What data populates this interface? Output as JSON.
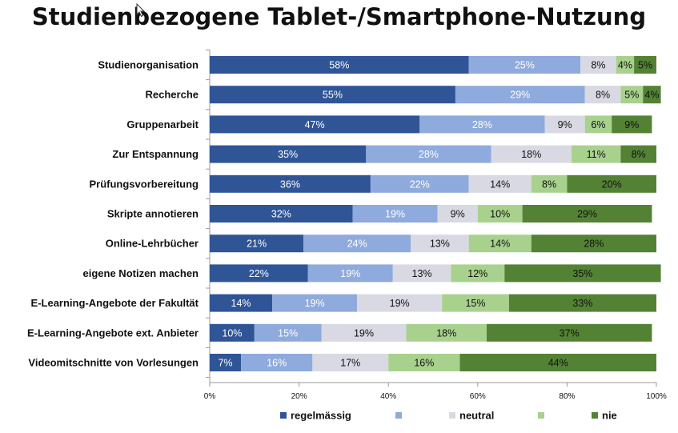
{
  "chart_data": {
    "type": "bar",
    "orientation": "horizontal",
    "stacked": true,
    "title": "Studienbezogene Tablet-/Smartphone-Nutzung",
    "categories": [
      "Studienorganisation",
      "Recherche",
      "Gruppenarbeit",
      "Zur Entspannung",
      "Prüfungsvorbereitung",
      "Skripte annotieren",
      "Online-Lehrbücher",
      "eigene Notizen machen",
      "E-Learning-Angebote der Fakultät",
      "E-Learning-Angebote ext. Anbieter",
      "Videomitschnitte von Vorlesungen"
    ],
    "series": [
      {
        "name": "regelmässig",
        "color": "#2f5597",
        "label_color": "#ffffff",
        "values": [
          58,
          55,
          47,
          35,
          36,
          32,
          21,
          22,
          14,
          10,
          7
        ]
      },
      {
        "name": "",
        "color": "#8faadc",
        "label_color": "#ffffff",
        "values": [
          25,
          29,
          28,
          28,
          22,
          19,
          24,
          19,
          19,
          15,
          16
        ]
      },
      {
        "name": "neutral",
        "color": "#d9d9e3",
        "label_color": "#111111",
        "values": [
          8,
          8,
          9,
          18,
          14,
          9,
          13,
          13,
          19,
          19,
          17
        ]
      },
      {
        "name": "",
        "color": "#a9d18e",
        "label_color": "#111111",
        "values": [
          4,
          5,
          6,
          11,
          8,
          10,
          14,
          12,
          15,
          18,
          16
        ]
      },
      {
        "name": "nie",
        "color": "#548235",
        "label_color": "#111111",
        "values": [
          5,
          4,
          9,
          8,
          20,
          29,
          28,
          35,
          33,
          37,
          44
        ]
      }
    ],
    "data_label_format": "{value}%",
    "xlim": [
      0,
      100
    ],
    "x_ticks": [
      "0%",
      "20%",
      "40%",
      "60%",
      "80%",
      "100%"
    ],
    "legend_position": "bottom",
    "grid": false
  }
}
